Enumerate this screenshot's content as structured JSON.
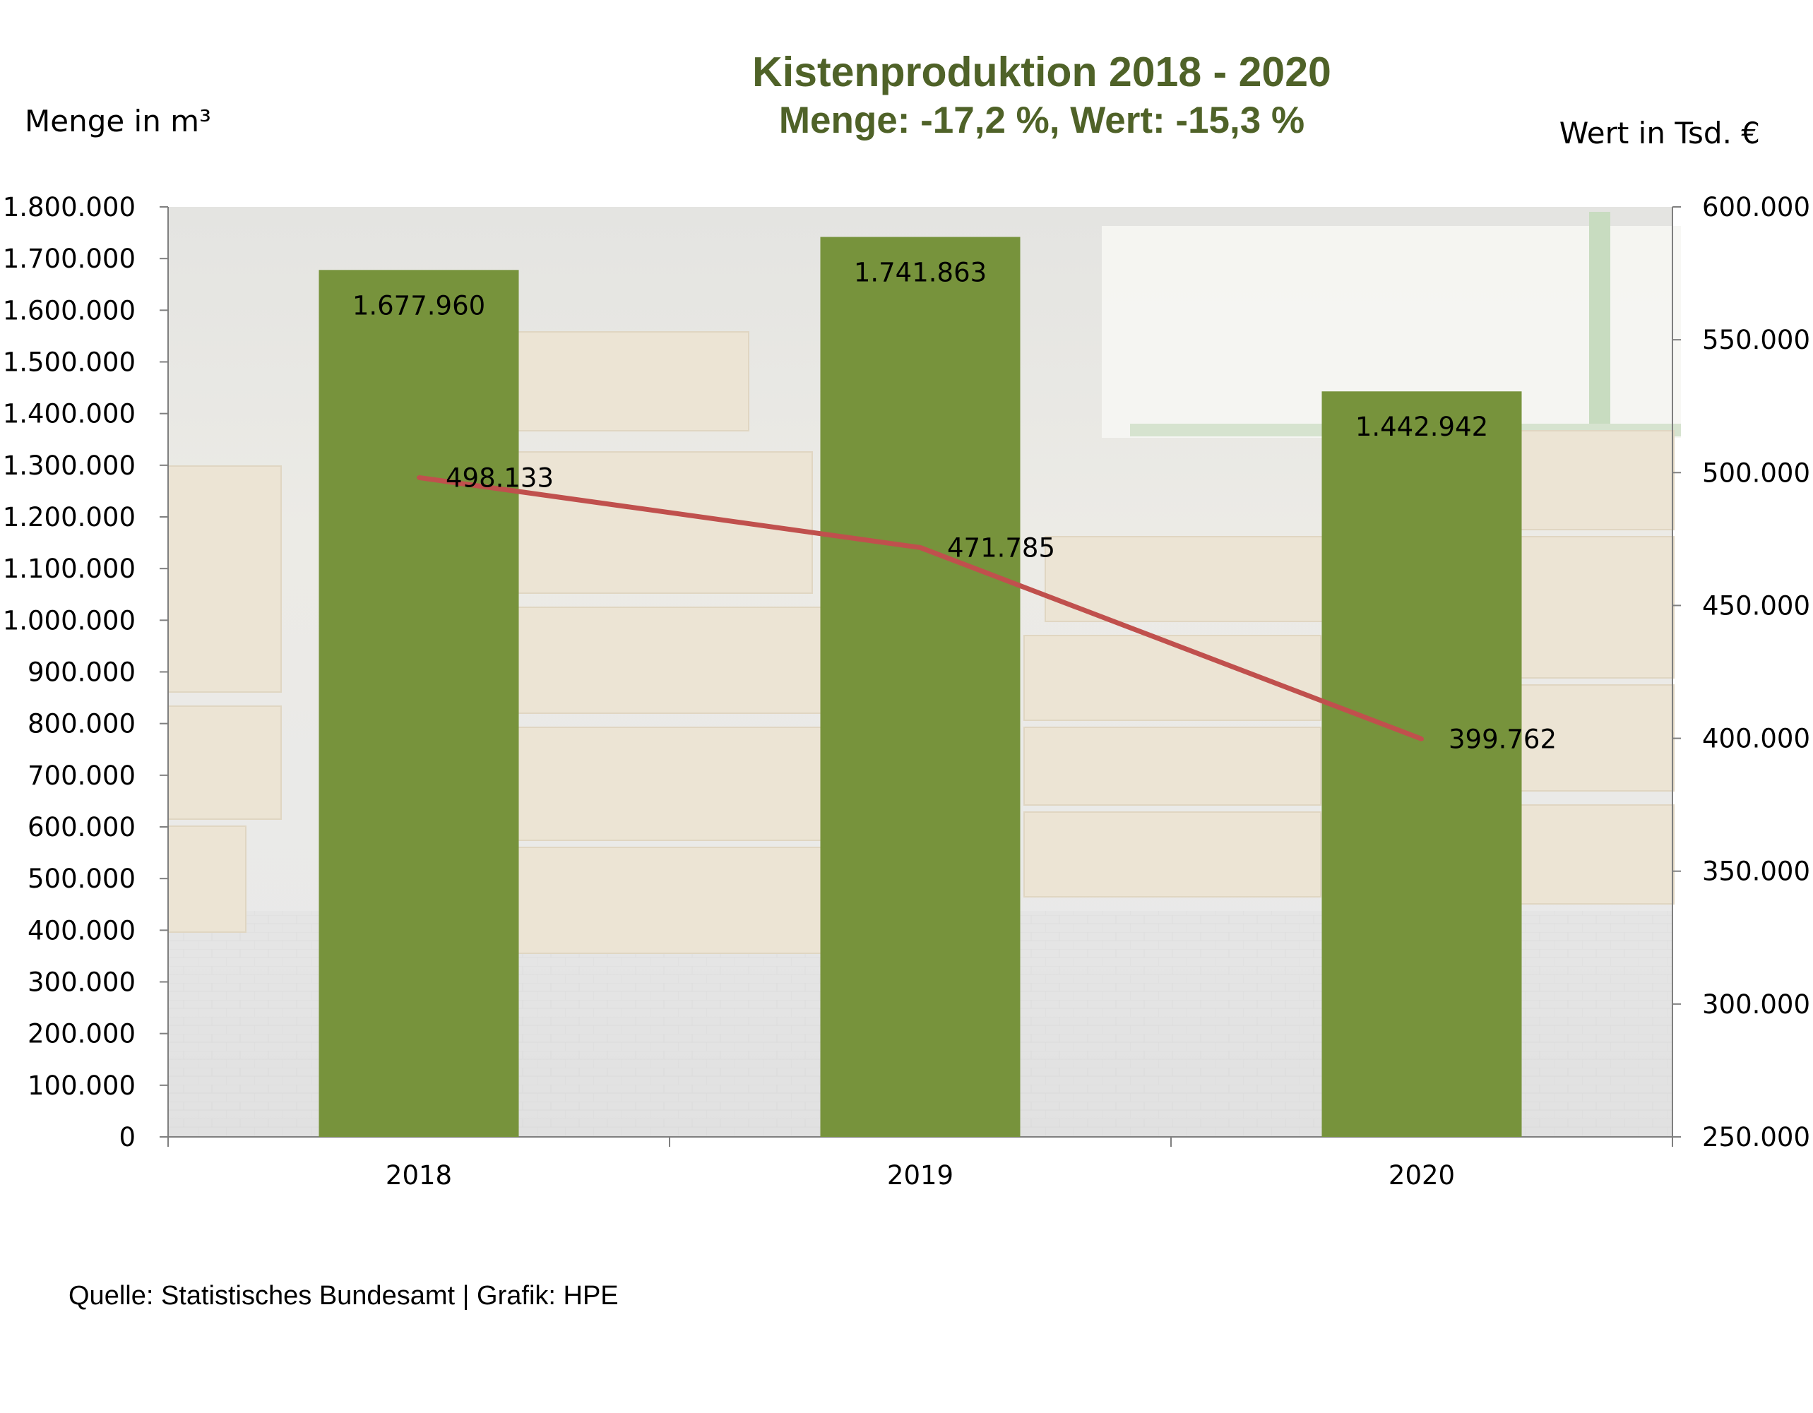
{
  "chart_data": {
    "type": "bar",
    "title": "Kistenproduktion 2018 - 2020",
    "subtitle": "Menge: -17,2 %, Wert: -15,3 %",
    "ylabel_left": "Menge in m³",
    "ylabel_right": "Wert in Tsd. €",
    "categories": [
      "2018",
      "2019",
      "2020"
    ],
    "series": [
      {
        "type": "bar",
        "axis": "left",
        "values": [
          1677960,
          1741863,
          1442942
        ],
        "labels": [
          "1.677.960",
          "1.741.863",
          "1.442.942"
        ],
        "color": "#77933c"
      },
      {
        "type": "line",
        "axis": "right",
        "values": [
          498133,
          471785,
          399762
        ],
        "labels": [
          "498.133",
          "471.785",
          "399.762"
        ],
        "color": "#c0504d"
      }
    ],
    "y_left": {
      "min": 0,
      "max": 1800000,
      "step": 100000,
      "ticks": [
        "0",
        "100.000",
        "200.000",
        "300.000",
        "400.000",
        "500.000",
        "600.000",
        "700.000",
        "800.000",
        "900.000",
        "1.000.000",
        "1.100.000",
        "1.200.000",
        "1.300.000",
        "1.400.000",
        "1.500.000",
        "1.600.000",
        "1.700.000",
        "1.800.000"
      ]
    },
    "y_right": {
      "min": 250000,
      "max": 600000,
      "step": 50000,
      "ticks": [
        "250.000",
        "300.000",
        "350.000",
        "400.000",
        "450.000",
        "500.000",
        "550.000",
        "600.000"
      ]
    },
    "grid": false,
    "legend": "none",
    "colors": {
      "title": "#4f6228",
      "bar": "#77933c",
      "line": "#c0504d",
      "axis": "#7f7f7f"
    }
  },
  "source": "Quelle: Statistisches Bundesamt | Grafik: HPE"
}
